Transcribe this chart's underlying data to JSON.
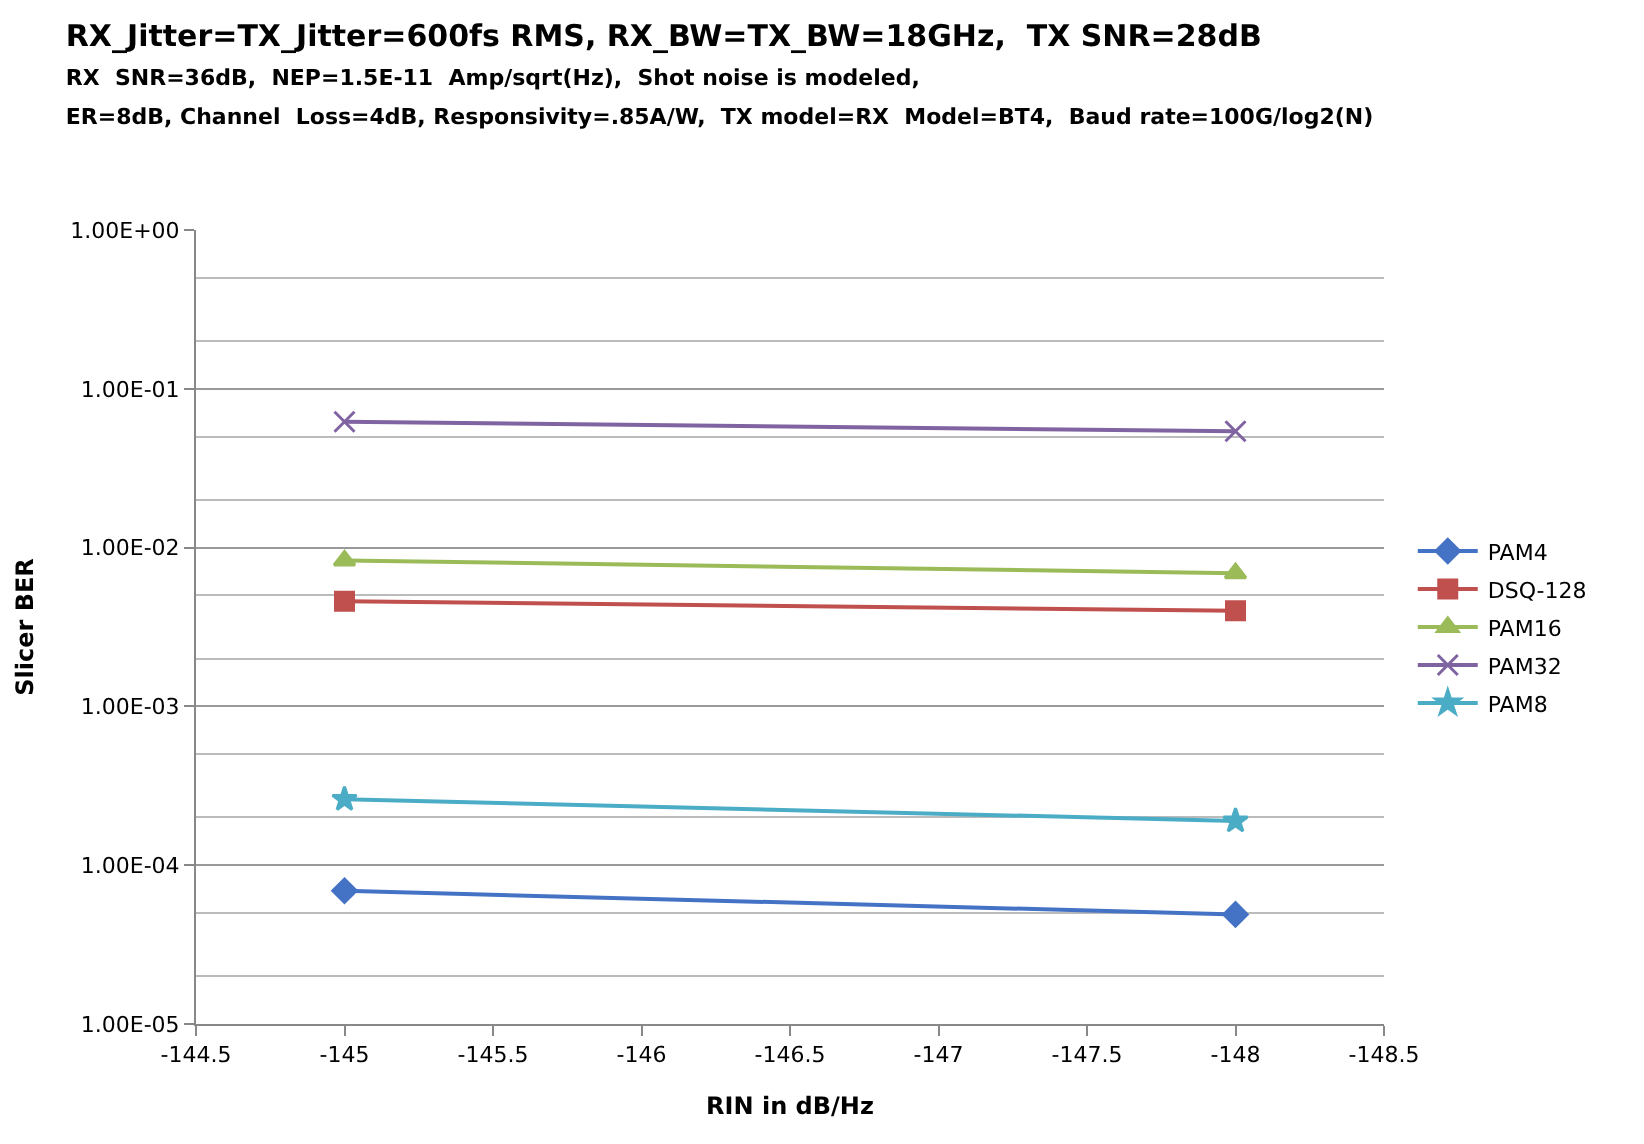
{
  "chart_data": {
    "type": "line",
    "title": "RX_Jitter=TX_Jitter=600fs RMS, RX_BW=TX_BW=18GHz,  TX SNR=28dB",
    "subtitle": "RX  SNR=36dB,  NEP=1.5E-11  Amp/sqrt(Hz),  Shot noise is modeled,\nER=8dB, Channel  Loss=4dB, Responsivity=.85A/W,  TX model=RX  Model=BT4,  Baud rate=100G/log2(N)",
    "xlabel": "RIN in dB/Hz",
    "ylabel": "Slicer BER",
    "x": [
      -145,
      -148
    ],
    "series": [
      {
        "name": "PAM4",
        "color": "#4472c4",
        "marker": "diamond",
        "values": [
          6.9e-05,
          4.9e-05
        ]
      },
      {
        "name": "DSQ-128",
        "color": "#c0504d",
        "marker": "square",
        "values": [
          0.0046,
          0.004
        ]
      },
      {
        "name": "PAM16",
        "color": "#9bbb59",
        "marker": "triangle",
        "values": [
          0.0083,
          0.0069
        ]
      },
      {
        "name": "PAM32",
        "color": "#8064a2",
        "marker": "cross",
        "values": [
          0.062,
          0.054
        ]
      },
      {
        "name": "PAM8",
        "color": "#4bacc6",
        "marker": "star",
        "values": [
          0.00026,
          0.00019
        ]
      }
    ],
    "xlim": [
      -144.5,
      -148.5
    ],
    "xticks": [
      -144.5,
      -145,
      -145.5,
      -146,
      -146.5,
      -147,
      -147.5,
      -148,
      -148.5
    ],
    "ylim": [
      1e-05,
      1
    ],
    "yticks": [
      {
        "value": 1,
        "label": "1.00E+00"
      },
      {
        "value": 0.1,
        "label": "1.00E-01"
      },
      {
        "value": 0.01,
        "label": "1.00E-02"
      },
      {
        "value": 0.001,
        "label": "1.00E-03"
      },
      {
        "value": 0.0001,
        "label": "1.00E-04"
      },
      {
        "value": 1e-05,
        "label": "1.00E-05"
      }
    ],
    "log": true,
    "grid": "y",
    "legend": "right",
    "line_style": "solid"
  }
}
